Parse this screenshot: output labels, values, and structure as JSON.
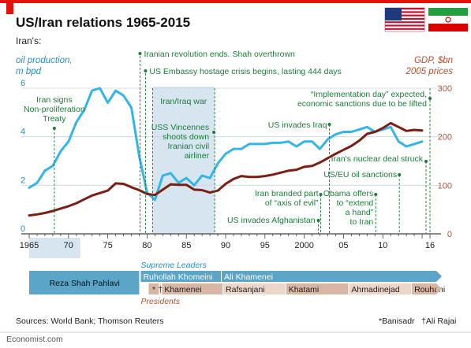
{
  "header": {
    "title": "US/Iran relations 1965-2015",
    "subtitle": "Iran's:",
    "source": "Sources: World Bank; Thomson Reuters",
    "footnotes": [
      "*Banisadr",
      "†Ali Rajai"
    ],
    "brand": "Economist.com"
  },
  "colors": {
    "oil": "#34b5e8",
    "gdp": "#7a1f14",
    "annotation": "#1b7d3a",
    "left_axis": "#2a8fc4",
    "right_axis": "#b7512e",
    "shade": "#d6e5ef",
    "title_bar": "#e3120b",
    "supreme_bar": "#5aa5c8",
    "presidents_bar": "#d8b6a4"
  },
  "chart_data": {
    "type": "line",
    "title": "US/Iran relations 1965-2015",
    "y_left_label": [
      "oil production,",
      "m bpd"
    ],
    "y_right_label": [
      "GDP, $bn",
      "2005 prices"
    ],
    "x_ticks": [
      "1965",
      "70",
      "75",
      "80",
      "85",
      "90",
      "95",
      "2000",
      "05",
      "10",
      "16"
    ],
    "x_tick_values": [
      1965,
      1970,
      1975,
      1980,
      1985,
      1990,
      1995,
      2000,
      2005,
      2010,
      2016
    ],
    "xlim": [
      1965,
      2016
    ],
    "ylim_left": [
      0,
      6
    ],
    "ylim_right": [
      0,
      300
    ],
    "y_left_ticks": [
      "0",
      "2",
      "4",
      "6"
    ],
    "y_right_ticks": [
      "0",
      "100",
      "200",
      "300"
    ],
    "grid": true,
    "series": [
      {
        "name": "oil production",
        "axis": "left",
        "x": [
          1965,
          1966,
          1967,
          1968,
          1969,
          1970,
          1971,
          1972,
          1973,
          1974,
          1975,
          1976,
          1977,
          1978,
          1979,
          1980,
          1981,
          1982,
          1983,
          1984,
          1985,
          1986,
          1987,
          1988,
          1989,
          1990,
          1991,
          1992,
          1993,
          1994,
          1995,
          1996,
          1997,
          1998,
          1999,
          2000,
          2001,
          2002,
          2003,
          2004,
          2005,
          2006,
          2007,
          2008,
          2009,
          2010,
          2011,
          2012,
          2013,
          2014,
          2015
        ],
        "values": [
          1.9,
          2.1,
          2.6,
          2.8,
          3.4,
          3.8,
          4.6,
          5.1,
          5.9,
          6.0,
          5.4,
          5.9,
          5.7,
          5.2,
          3.2,
          1.7,
          1.4,
          2.4,
          2.5,
          2.1,
          2.3,
          2.0,
          2.4,
          2.3,
          2.9,
          3.3,
          3.5,
          3.5,
          3.7,
          3.7,
          3.7,
          3.75,
          3.75,
          3.8,
          3.6,
          3.8,
          3.8,
          3.5,
          3.9,
          4.1,
          4.2,
          4.2,
          4.3,
          4.4,
          4.2,
          4.3,
          4.4,
          3.8,
          3.6,
          3.7,
          3.8
        ]
      },
      {
        "name": "GDP",
        "axis": "right",
        "x": [
          1965,
          1966,
          1967,
          1968,
          1969,
          1970,
          1971,
          1972,
          1973,
          1974,
          1975,
          1976,
          1977,
          1978,
          1979,
          1980,
          1981,
          1982,
          1983,
          1984,
          1985,
          1986,
          1987,
          1988,
          1989,
          1990,
          1991,
          1992,
          1993,
          1994,
          1995,
          1996,
          1997,
          1998,
          1999,
          2000,
          2001,
          2002,
          2003,
          2004,
          2005,
          2006,
          2007,
          2008,
          2009,
          2010,
          2011,
          2012,
          2013,
          2014,
          2015
        ],
        "values": [
          38,
          40,
          43,
          47,
          52,
          57,
          63,
          71,
          79,
          84,
          89,
          104,
          103,
          96,
          90,
          82,
          80,
          91,
          102,
          101,
          101,
          91,
          90,
          85,
          89,
          103,
          113,
          119,
          117,
          117,
          119,
          122,
          126,
          130,
          132,
          138,
          140,
          147,
          156,
          165,
          173,
          181,
          192,
          206,
          210,
          218,
          228,
          220,
          212,
          214,
          213
        ]
      }
    ],
    "shaded_periods": [
      {
        "label": "Iran/Iraq war",
        "x0": 1980.7,
        "x1": 1988.6
      },
      {
        "label": "",
        "x0": 1965,
        "x1": 1971.5
      }
    ],
    "annotations": [
      {
        "lines": [
          "Iran signs",
          "Non-proliferation",
          "Treaty"
        ],
        "year": 1968.2
      },
      {
        "lines": [
          "Iranian revolution ends. Shah overthrown"
        ],
        "year": 1979.1
      },
      {
        "lines": [
          "US Embassy hostage crisis begins, lasting 444 days"
        ],
        "year": 1979.8
      },
      {
        "lines": [
          "Iran/Iraq war"
        ],
        "year": 1980.7
      },
      {
        "lines": [
          "USS Vincennes",
          "shoots down",
          "Iranian civil",
          "airliner"
        ],
        "year": 1988.5
      },
      {
        "lines": [
          "US invades Iraq"
        ],
        "year": 2003.2
      },
      {
        "lines": [
          "“Implementation day” expected,",
          "economic sanctions due to be lifted"
        ],
        "year": 2016
      },
      {
        "lines": [
          "Iran's nuclear deal struck"
        ],
        "year": 2015.5
      },
      {
        "lines": [
          "US/EU oil sanctions"
        ],
        "year": 2012.1
      },
      {
        "lines": [
          "Iran branded part",
          "of “axis of evil”"
        ],
        "year": 2002.1
      },
      {
        "lines": [
          "Obama offers",
          "to “extend",
          "a hand”",
          "to Iran"
        ],
        "year": 2009.1
      },
      {
        "lines": [
          "US invades Afghanistan"
        ],
        "year": 2001.8
      }
    ]
  },
  "leaders": {
    "supreme_title": "Supreme Leaders",
    "presidents_title": "Presidents",
    "shah": {
      "label": "Reza Shah Pahlavi"
    },
    "supreme": [
      {
        "label": "Ruhollah Khomeini",
        "start": 1979.1,
        "end": 1989.4
      },
      {
        "label": "Ali Khamenei",
        "start": 1989.4,
        "end": 2016
      }
    ],
    "presidents": [
      {
        "label": "*",
        "start": 1980.1,
        "end": 1981.5
      },
      {
        "label": "†",
        "start": 1981.5,
        "end": 1981.8
      },
      {
        "label": "Khamenei",
        "start": 1981.8,
        "end": 1989.6
      },
      {
        "label": "Rafsanjani",
        "start": 1989.6,
        "end": 1997.6
      },
      {
        "label": "Khatami",
        "start": 1997.6,
        "end": 2005.6
      },
      {
        "label": "Ahmadinejad",
        "start": 2005.6,
        "end": 2013.6
      },
      {
        "label": "Rouhani",
        "start": 2013.6,
        "end": 2016
      }
    ]
  },
  "flags": [
    "United States",
    "Iran"
  ]
}
